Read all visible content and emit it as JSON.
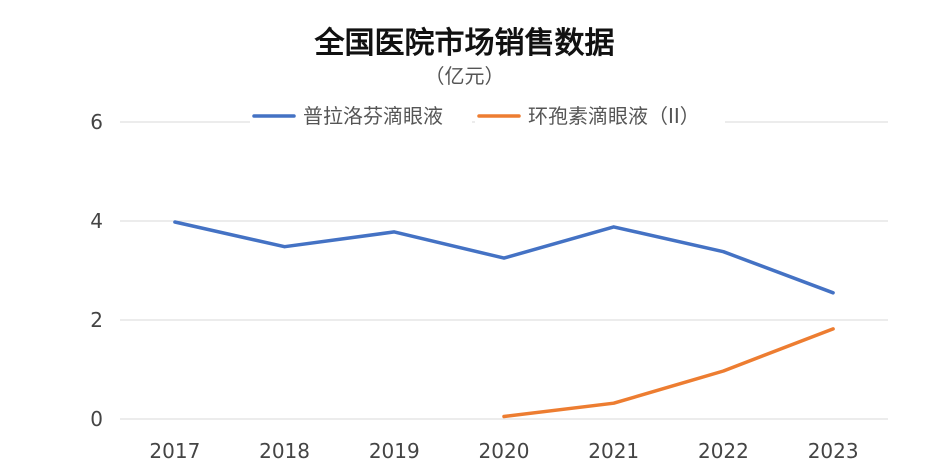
{
  "chart_data": {
    "type": "line",
    "title": "全国医院市场销售数据",
    "subtitle": "（亿元）",
    "xlabel": "",
    "ylabel": "",
    "categories": [
      "2017",
      "2018",
      "2019",
      "2020",
      "2021",
      "2022",
      "2023"
    ],
    "ylim": [
      0,
      6
    ],
    "yticks": [
      0,
      2,
      4,
      6
    ],
    "grid": true,
    "legend_position": "top",
    "series": [
      {
        "name": "普拉洛芬滴眼液",
        "color": "#4472C4",
        "values": [
          3.98,
          3.48,
          3.78,
          3.25,
          3.88,
          3.38,
          2.55
        ]
      },
      {
        "name": "环孢素滴眼液（II）",
        "color": "#ED7D31",
        "values": [
          null,
          null,
          null,
          0.05,
          0.32,
          0.97,
          1.82
        ]
      }
    ]
  }
}
